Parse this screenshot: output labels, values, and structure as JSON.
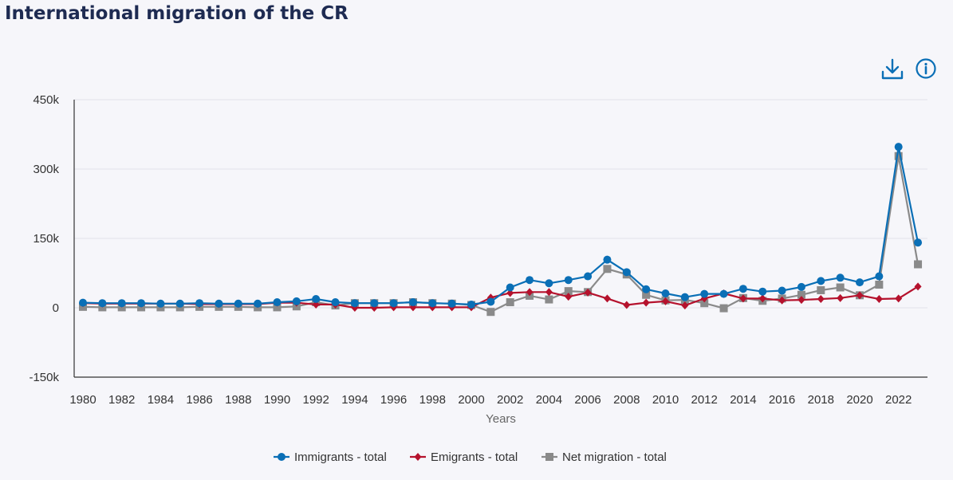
{
  "header": {
    "title": "International migration of the CR"
  },
  "toolbar": {
    "download_icon": "download-icon",
    "info_icon": "info-icon"
  },
  "colors": {
    "immigrants": "#0a6fb6",
    "emigrants": "#b5122d",
    "net": "#8a8a8a",
    "title": "#1e2b52",
    "grid": "#e2e2ea",
    "axis": "#333333"
  },
  "chart_data": {
    "type": "line",
    "title": "International migration of the CR",
    "xlabel": "Years",
    "ylabel": "",
    "ylim": [
      -150000,
      450000
    ],
    "yticks": [
      -150000,
      0,
      150000,
      300000,
      450000
    ],
    "ytick_labels": [
      "-150k",
      "0",
      "150k",
      "300k",
      "450k"
    ],
    "xtick_labels": [
      "1980",
      "1982",
      "1984",
      "1986",
      "1988",
      "1990",
      "1992",
      "1994",
      "1996",
      "1998",
      "2000",
      "2002",
      "2004",
      "2006",
      "2008",
      "2010",
      "2012",
      "2014",
      "2016",
      "2018",
      "2020",
      "2022"
    ],
    "grid": true,
    "legend_position": "bottom",
    "x": [
      1980,
      1981,
      1982,
      1983,
      1984,
      1985,
      1986,
      1987,
      1988,
      1989,
      1990,
      1991,
      1992,
      1993,
      1994,
      1995,
      1996,
      1997,
      1998,
      1999,
      2000,
      2001,
      2002,
      2003,
      2004,
      2005,
      2006,
      2007,
      2008,
      2009,
      2010,
      2011,
      2012,
      2013,
      2014,
      2015,
      2016,
      2017,
      2018,
      2019,
      2020,
      2021,
      2022,
      2023
    ],
    "series": [
      {
        "name": "Immigrants - total",
        "marker": "circle",
        "values": [
          11000,
          10000,
          10000,
          10000,
          9000,
          9000,
          10000,
          9000,
          9000,
          9000,
          12000,
          14000,
          19000,
          12000,
          10000,
          10000,
          10000,
          12000,
          10000,
          9000,
          7000,
          13000,
          44000,
          60000,
          53000,
          60000,
          68000,
          104000,
          77000,
          40000,
          31000,
          23000,
          30000,
          30000,
          41000,
          35000,
          37000,
          45000,
          58000,
          65000,
          55000,
          68000,
          348000,
          141000
        ]
      },
      {
        "name": "Emigrants - total",
        "marker": "diamond",
        "values": [
          10000,
          9000,
          9000,
          9000,
          9000,
          9000,
          8000,
          8000,
          8000,
          8000,
          11000,
          11000,
          7000,
          7000,
          0,
          0,
          1000,
          1000,
          1000,
          1000,
          1000,
          22000,
          32000,
          34000,
          34000,
          24000,
          33000,
          20000,
          6000,
          11000,
          14000,
          5000,
          20000,
          31000,
          20000,
          20000,
          16000,
          17000,
          19000,
          21000,
          27000,
          19000,
          20000,
          46000
        ]
      },
      {
        "name": "Net migration - total",
        "marker": "square",
        "values": [
          2000,
          1000,
          1000,
          1000,
          1000,
          1000,
          2000,
          2000,
          2000,
          1000,
          1000,
          3000,
          12000,
          5000,
          10000,
          10000,
          10000,
          12000,
          10000,
          9000,
          6000,
          -9000,
          12000,
          26000,
          18000,
          36000,
          34000,
          84000,
          72000,
          28000,
          16000,
          17000,
          10000,
          -1000,
          21000,
          15000,
          20000,
          28000,
          38000,
          44000,
          27000,
          50000,
          328000,
          94000
        ]
      }
    ]
  }
}
